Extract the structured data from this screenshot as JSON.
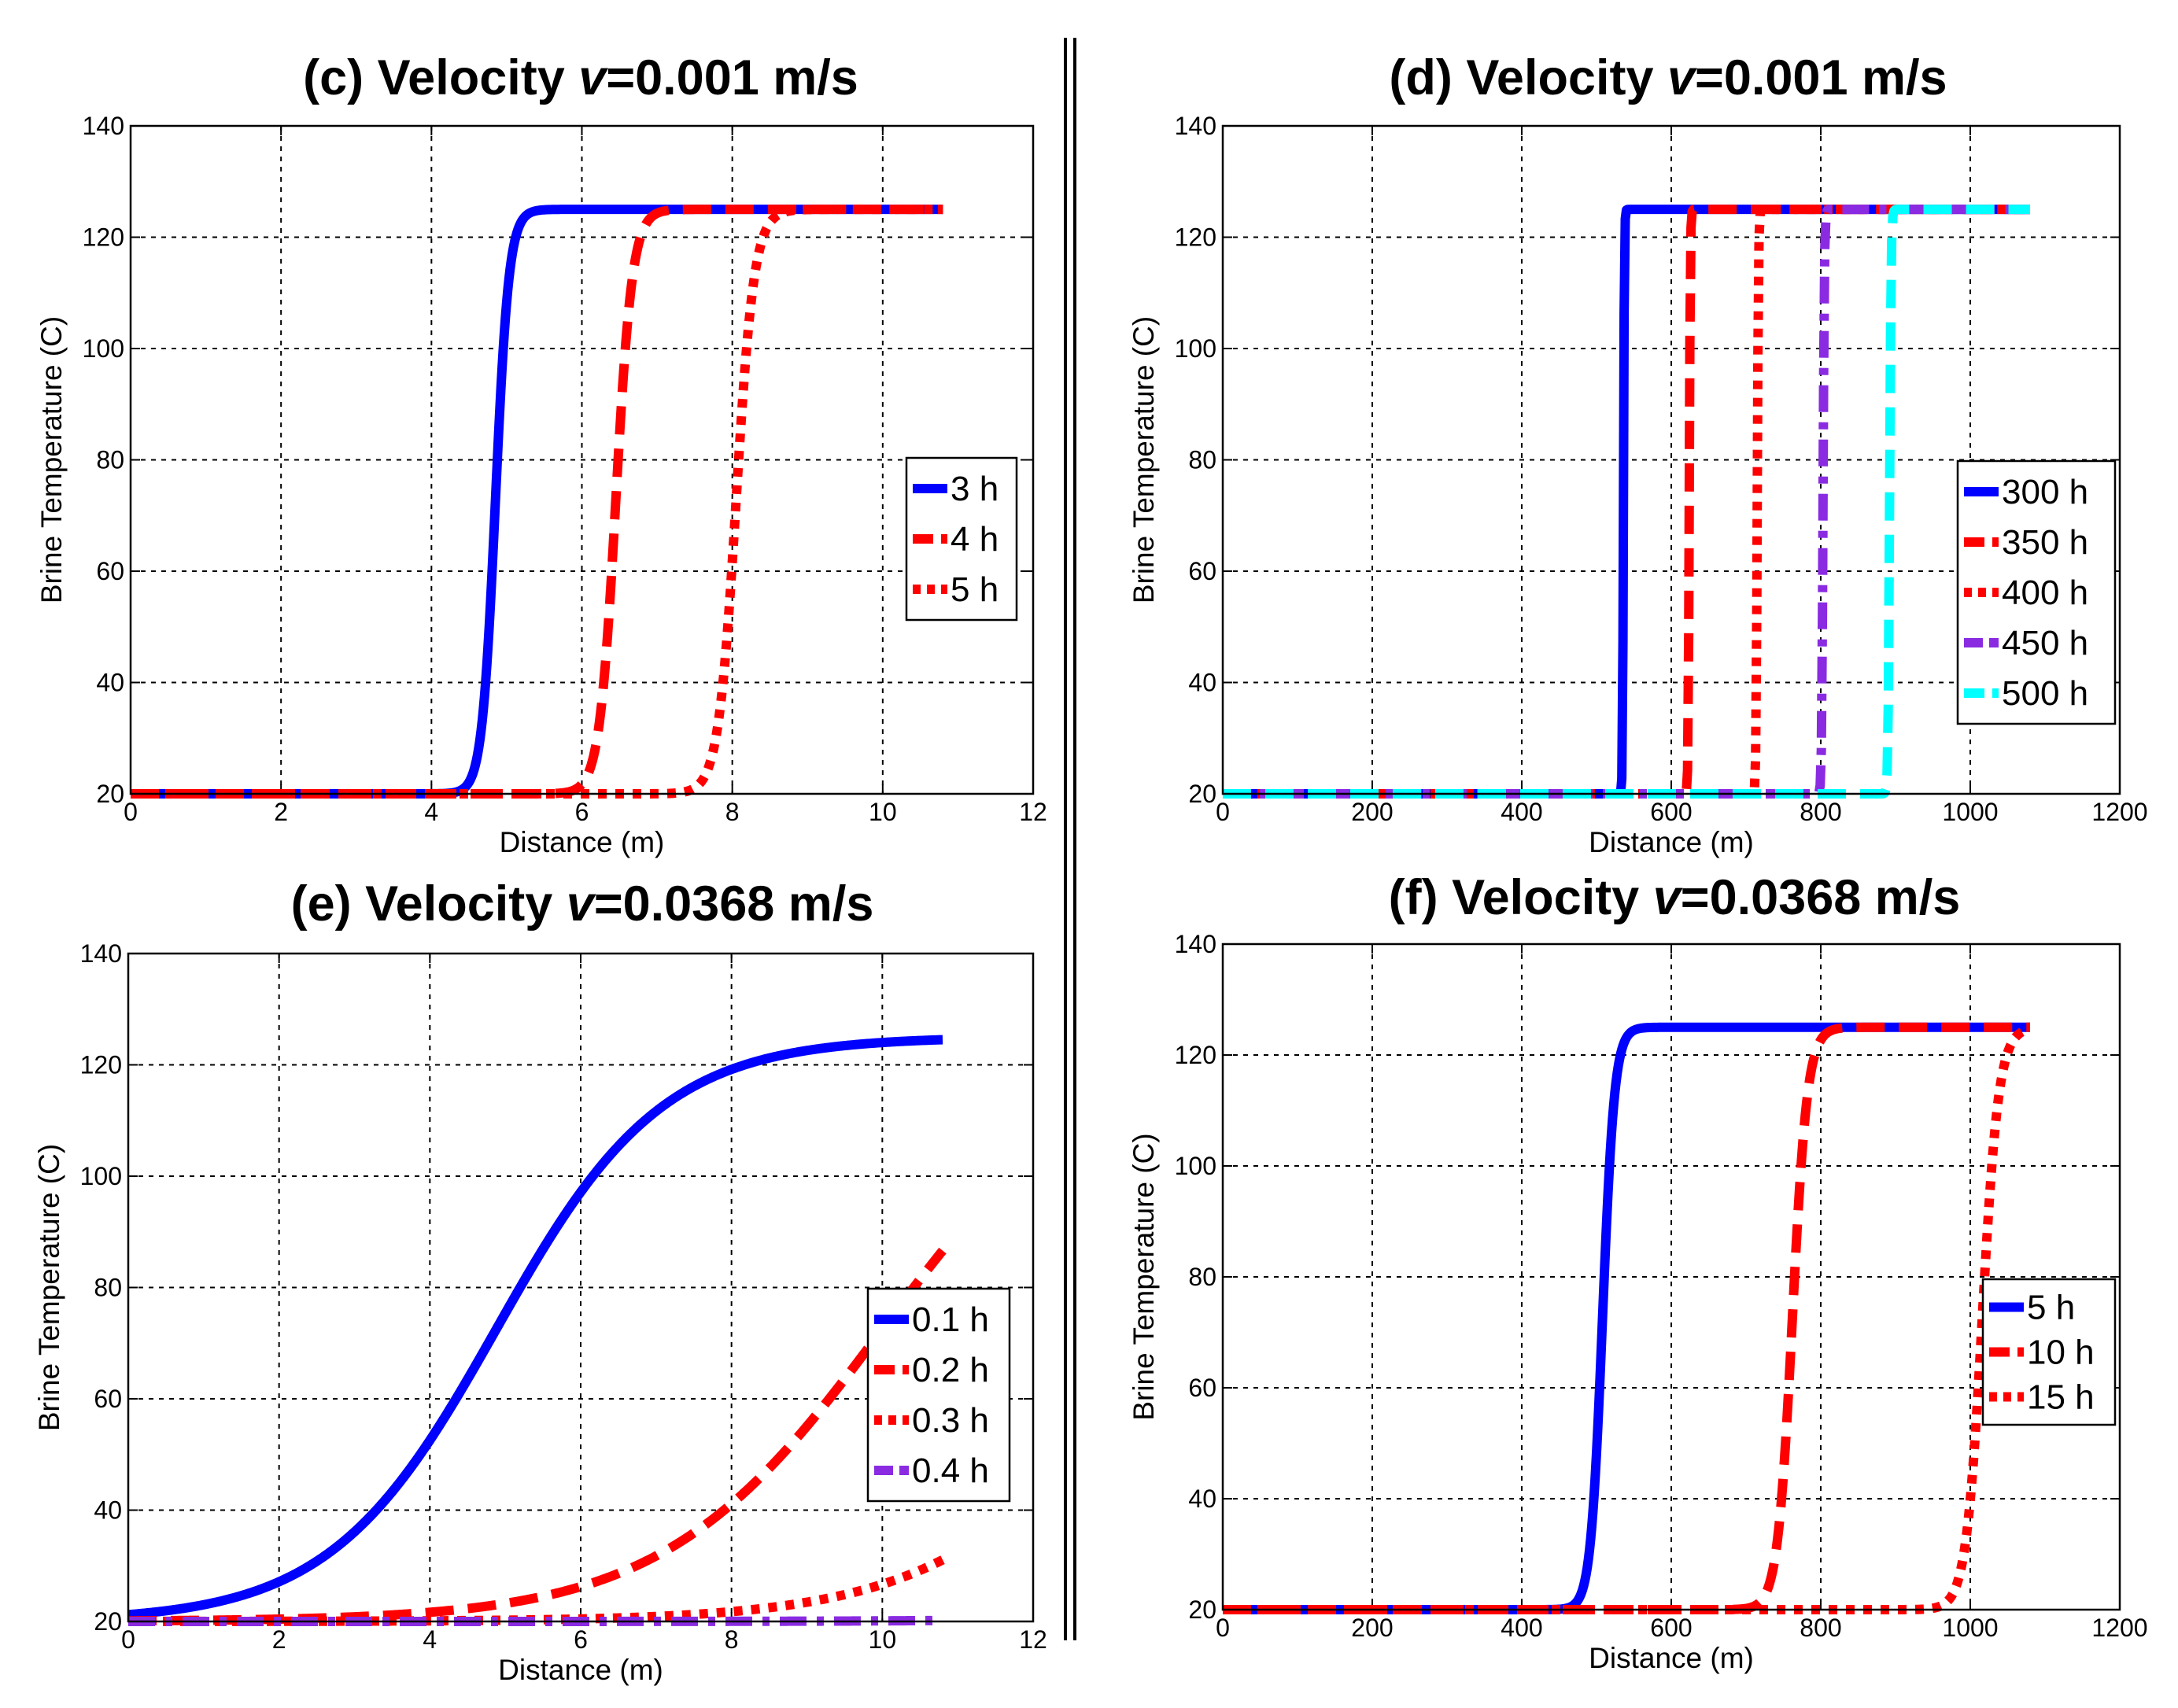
{
  "chart_data": [
    {
      "id": "c",
      "type": "line",
      "title": {
        "prefix": "(c) Velocity ",
        "var": "v",
        "suffix": "=0.001 m/s"
      },
      "xlabel": "Distance (m)",
      "ylabel": "Brine Temperature (C)",
      "xlim": [
        0,
        12
      ],
      "ylim": [
        20,
        140
      ],
      "xticks": [
        0,
        2,
        4,
        6,
        8,
        10,
        12
      ],
      "yticks": [
        20,
        40,
        60,
        80,
        100,
        120,
        140
      ],
      "grid": true,
      "legend": "center-right",
      "series": [
        {
          "name": "3 h",
          "color": "#0000ff",
          "dash": "solid",
          "profile": {
            "xmax": 10.8,
            "x0": 4.85,
            "w": 0.09,
            "Tmin": 20,
            "Tmax": 125
          }
        },
        {
          "name": "4 h",
          "color": "#ff0000",
          "dash": "dash",
          "profile": {
            "xmax": 10.8,
            "x0": 6.45,
            "w": 0.11,
            "Tmin": 20,
            "Tmax": 125
          }
        },
        {
          "name": "5 h",
          "color": "#ff0000",
          "dash": "dot",
          "profile": {
            "xmax": 10.8,
            "x0": 8.05,
            "w": 0.12,
            "Tmin": 20,
            "Tmax": 125
          }
        }
      ]
    },
    {
      "id": "d",
      "type": "line",
      "title": {
        "prefix": "(d) Velocity ",
        "var": "v",
        "suffix": "=0.001 m/s"
      },
      "xlabel": "Distance (m)",
      "ylabel": "Brine Temperature (C)",
      "xlim": [
        0,
        1200
      ],
      "ylim": [
        20,
        140
      ],
      "xticks": [
        0,
        200,
        400,
        600,
        800,
        1000,
        1200
      ],
      "yticks": [
        20,
        40,
        60,
        80,
        100,
        120,
        140
      ],
      "grid": true,
      "legend": "lower-right",
      "series": [
        {
          "name": "300 h",
          "color": "#0000ff",
          "dash": "solid",
          "profile": {
            "xmax": 1080,
            "x0": 536,
            "w": 0.6,
            "Tmin": 20,
            "Tmax": 125
          }
        },
        {
          "name": "350 h",
          "color": "#ff0000",
          "dash": "dash",
          "profile": {
            "xmax": 1080,
            "x0": 624,
            "w": 0.7,
            "Tmin": 20,
            "Tmax": 125
          }
        },
        {
          "name": "400 h",
          "color": "#ff0000",
          "dash": "dot",
          "profile": {
            "xmax": 1080,
            "x0": 715,
            "w": 0.8,
            "Tmin": 20,
            "Tmax": 125
          }
        },
        {
          "name": "450 h",
          "color": "#8a2be2",
          "dash": "dashdot",
          "profile": {
            "xmax": 1080,
            "x0": 803,
            "w": 0.9,
            "Tmin": 20,
            "Tmax": 125
          }
        },
        {
          "name": "500 h",
          "color": "#00ffff",
          "dash": "dash",
          "profile": {
            "xmax": 1080,
            "x0": 892,
            "w": 1.0,
            "Tmin": 20,
            "Tmax": 125
          }
        }
      ]
    },
    {
      "id": "e",
      "type": "line",
      "title": {
        "prefix": "(e) Velocity ",
        "var": "v",
        "suffix": "=0.0368 m/s"
      },
      "xlabel": "Distance (m)",
      "ylabel": "Brine Temperature (C)",
      "xlim": [
        0,
        12
      ],
      "ylim": [
        20,
        140
      ],
      "xticks": [
        0,
        2,
        4,
        6,
        8,
        10,
        12
      ],
      "yticks": [
        20,
        40,
        60,
        80,
        100,
        120,
        140
      ],
      "grid": true,
      "legend": "lower-right",
      "series": [
        {
          "name": "0.1 h",
          "color": "#0000ff",
          "dash": "solid",
          "profile": {
            "xmax": 10.8,
            "x0": 4.88,
            "w": 1.1,
            "Tmin": 20,
            "Tmax": 125
          }
        },
        {
          "name": "0.2 h",
          "color": "#ff0000",
          "dash": "dash",
          "profile": {
            "xmax": 10.8,
            "x0": 10.0,
            "w": 1.45,
            "Tmin": 20,
            "Tmax": 125
          }
        },
        {
          "name": "0.3 h",
          "color": "#ff0000",
          "dash": "dot",
          "profile": {
            "xmax": 10.8,
            "x0": 13.9,
            "w": 1.45,
            "Tmin": 20,
            "Tmax": 125
          }
        },
        {
          "name": "0.4 h",
          "color": "#8a2be2",
          "dash": "dashdot",
          "profile": {
            "xmax": 10.8,
            "x0": 20.0,
            "w": 1.45,
            "Tmin": 20,
            "Tmax": 125
          }
        }
      ]
    },
    {
      "id": "f",
      "type": "line",
      "title": {
        "prefix": "(f) Velocity ",
        "var": "v",
        "suffix": "=0.0368 m/s"
      },
      "xlabel": "Distance (m)",
      "ylabel": "Brine Temperature (C)",
      "xlim": [
        0,
        1200
      ],
      "ylim": [
        20,
        140
      ],
      "xticks": [
        0,
        200,
        400,
        600,
        800,
        1000,
        1200
      ],
      "yticks": [
        20,
        40,
        60,
        80,
        100,
        120,
        140
      ],
      "grid": true,
      "legend": "center-right",
      "series": [
        {
          "name": "5 h",
          "color": "#0000ff",
          "dash": "solid",
          "profile": {
            "xmax": 1080,
            "x0": 508,
            "w": 8,
            "Tmin": 20,
            "Tmax": 125
          }
        },
        {
          "name": "10 h",
          "color": "#ff0000",
          "dash": "dash",
          "profile": {
            "xmax": 1080,
            "x0": 762,
            "w": 10,
            "Tmin": 20,
            "Tmax": 125
          }
        },
        {
          "name": "15 h",
          "color": "#ff0000",
          "dash": "dot",
          "profile": {
            "xmax": 1080,
            "x0": 1016,
            "w": 11,
            "Tmin": 20,
            "Tmax": 125
          }
        }
      ]
    }
  ]
}
